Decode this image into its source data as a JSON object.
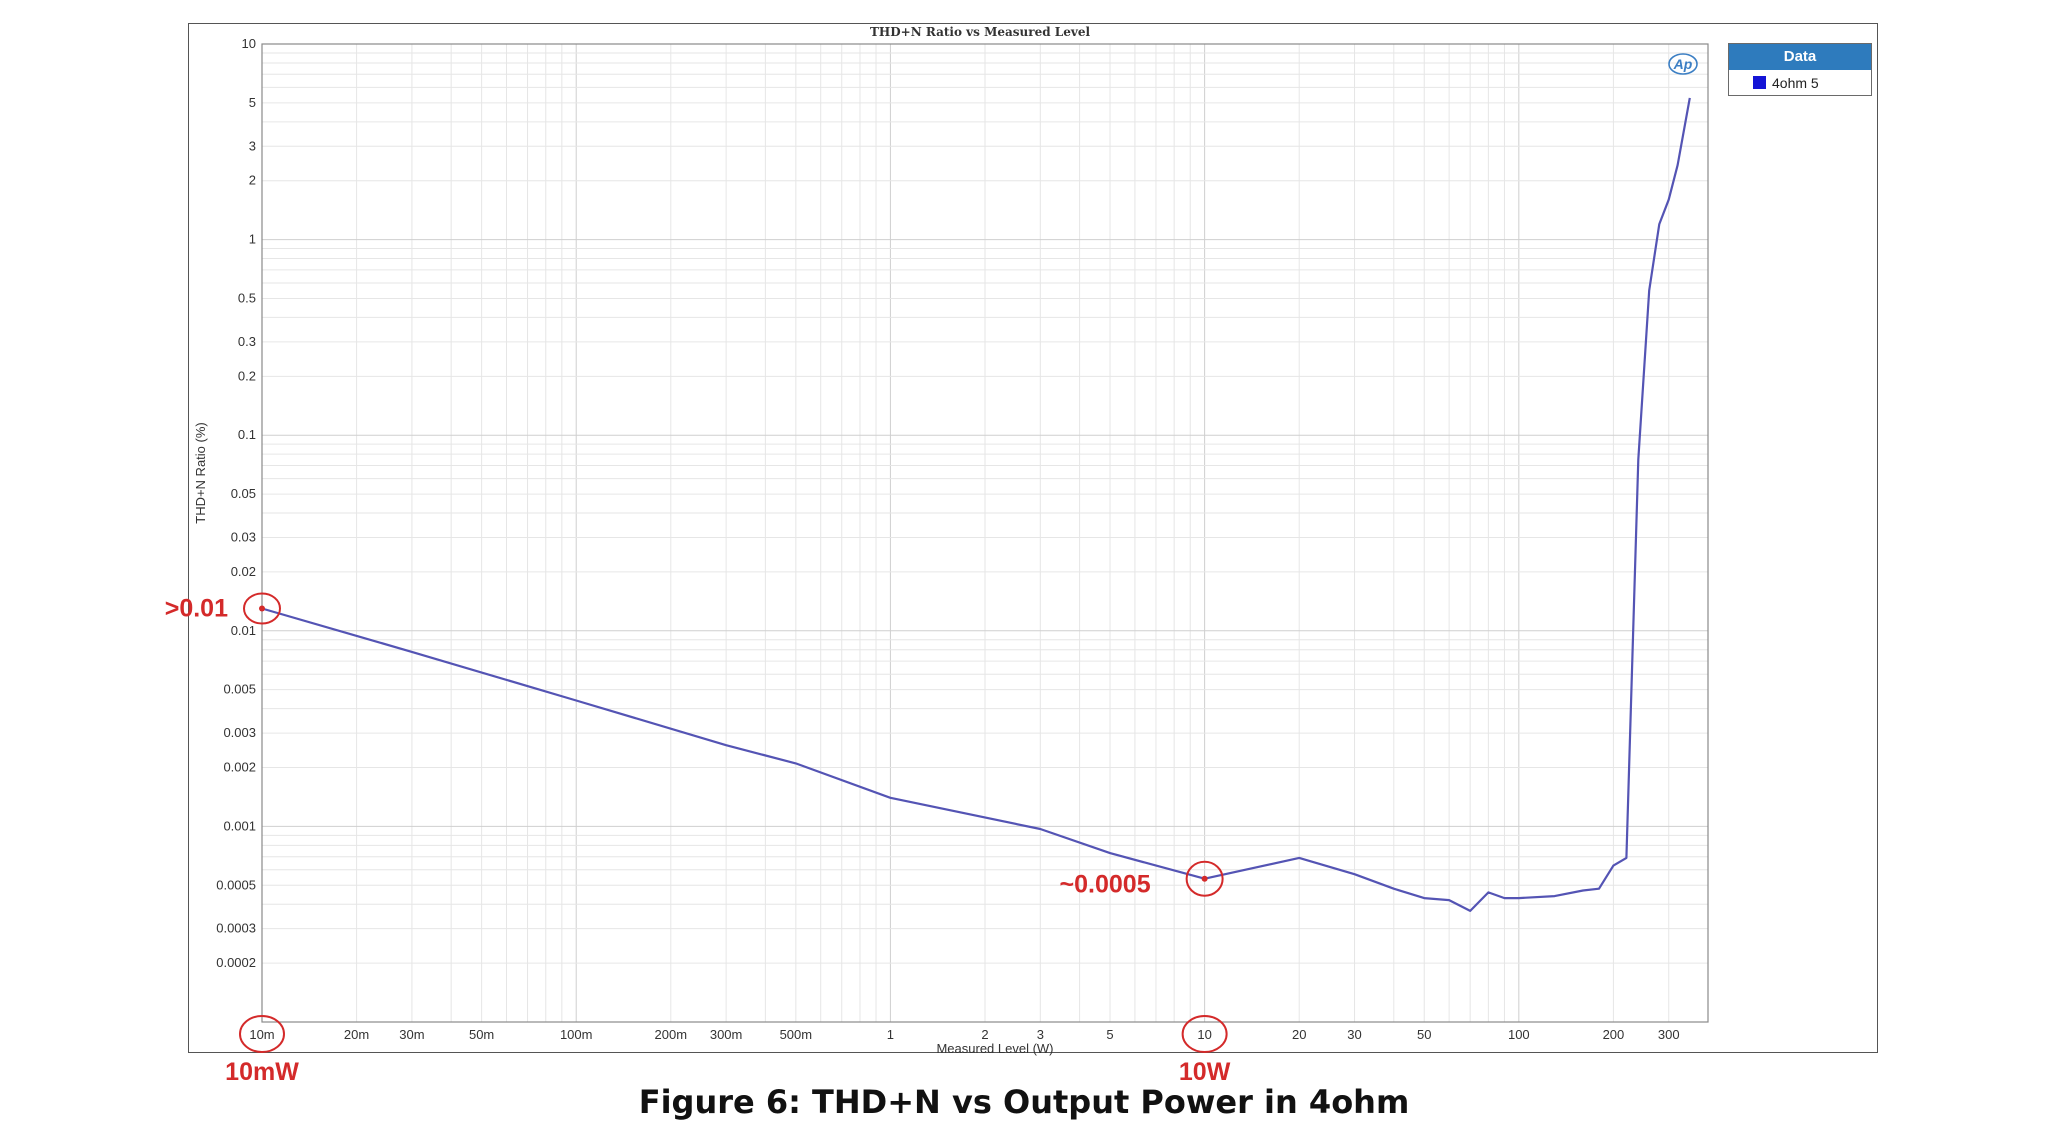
{
  "chart_data": {
    "type": "line",
    "title": "THD+N Ratio vs Measured Level",
    "xlabel": "Measured Level (W)",
    "ylabel": "THD+N Ratio (%)",
    "xscale": "log",
    "yscale": "log",
    "xlim": [
      0.01,
      400
    ],
    "ylim": [
      0.0001,
      10
    ],
    "grid": true,
    "legend_placement": "top-right",
    "legend_title": "Data",
    "xticks": [
      {
        "v": 0.01,
        "label": "10m"
      },
      {
        "v": 0.02,
        "label": "20m"
      },
      {
        "v": 0.03,
        "label": "30m"
      },
      {
        "v": 0.05,
        "label": "50m"
      },
      {
        "v": 0.1,
        "label": "100m"
      },
      {
        "v": 0.2,
        "label": "200m"
      },
      {
        "v": 0.3,
        "label": "300m"
      },
      {
        "v": 0.5,
        "label": "500m"
      },
      {
        "v": 1,
        "label": "1"
      },
      {
        "v": 2,
        "label": "2"
      },
      {
        "v": 3,
        "label": "3"
      },
      {
        "v": 5,
        "label": "5"
      },
      {
        "v": 10,
        "label": "10"
      },
      {
        "v": 20,
        "label": "20"
      },
      {
        "v": 30,
        "label": "30"
      },
      {
        "v": 50,
        "label": "50"
      },
      {
        "v": 100,
        "label": "100"
      },
      {
        "v": 200,
        "label": "200"
      },
      {
        "v": 300,
        "label": "300"
      }
    ],
    "yticks": [
      {
        "v": 10,
        "label": "10"
      },
      {
        "v": 5,
        "label": "5"
      },
      {
        "v": 3,
        "label": "3"
      },
      {
        "v": 2,
        "label": "2"
      },
      {
        "v": 1,
        "label": "1"
      },
      {
        "v": 0.5,
        "label": "0.5"
      },
      {
        "v": 0.3,
        "label": "0.3"
      },
      {
        "v": 0.2,
        "label": "0.2"
      },
      {
        "v": 0.1,
        "label": "0.1"
      },
      {
        "v": 0.05,
        "label": "0.05"
      },
      {
        "v": 0.03,
        "label": "0.03"
      },
      {
        "v": 0.02,
        "label": "0.02"
      },
      {
        "v": 0.01,
        "label": "0.01"
      },
      {
        "v": 0.005,
        "label": "0.005"
      },
      {
        "v": 0.003,
        "label": "0.003"
      },
      {
        "v": 0.002,
        "label": "0.002"
      },
      {
        "v": 0.001,
        "label": "0.001"
      },
      {
        "v": 0.0005,
        "label": "0.0005"
      },
      {
        "v": 0.0003,
        "label": "0.0003"
      },
      {
        "v": 0.0002,
        "label": "0.0002"
      }
    ],
    "series": [
      {
        "name": "4ohm 5",
        "color": "#5454b4",
        "x": [
          0.01,
          0.03,
          0.1,
          0.3,
          0.5,
          1,
          3,
          5,
          10,
          20,
          30,
          40,
          50,
          60,
          70,
          80,
          90,
          100,
          130,
          160,
          180,
          200,
          220,
          240,
          260,
          280,
          300,
          320,
          350
        ],
        "y": [
          0.013,
          0.0078,
          0.0044,
          0.0026,
          0.0021,
          0.0014,
          0.00097,
          0.00073,
          0.00054,
          0.00069,
          0.00057,
          0.00048,
          0.00043,
          0.00042,
          0.00037,
          0.00046,
          0.00043,
          0.00043,
          0.00044,
          0.00047,
          0.00048,
          0.00063,
          0.00069,
          0.075,
          0.55,
          1.2,
          1.6,
          2.4,
          5.3
        ]
      }
    ],
    "annotations": [
      {
        "label": ">0.01",
        "x": 0.01,
        "y": 0.013,
        "color": "#d42a2a"
      },
      {
        "label": "~0.0005",
        "x": 10,
        "y": 0.00054,
        "color": "#d42a2a"
      },
      {
        "label": "10mW",
        "x": 0.01,
        "color": "#d42a2a"
      },
      {
        "label": "10W",
        "x": 10,
        "color": "#d42a2a"
      }
    ],
    "brand_logo": "Ap"
  },
  "figure_caption": "Figure 6: THD+N vs Output Power in 4ohm"
}
